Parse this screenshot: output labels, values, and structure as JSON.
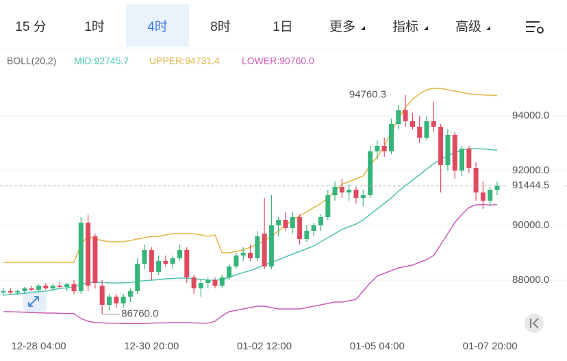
{
  "tabs": [
    "15 分",
    "1时",
    "4时",
    "8时",
    "1日",
    "更多",
    "指标",
    "高级"
  ],
  "active_tab": 2,
  "chart_data": {
    "type": "candlestick",
    "indicator": "BOLL(20,2)",
    "categories": [
      null,
      null,
      null,
      null,
      null,
      "12-28 04:00",
      null,
      null,
      null,
      null,
      null,
      null,
      null,
      null,
      null,
      null,
      null,
      null,
      null,
      null,
      null,
      "12-30 20:00",
      null,
      null,
      null,
      null,
      null,
      null,
      null,
      null,
      null,
      null,
      null,
      null,
      null,
      null,
      null,
      "01-02 12:00",
      null,
      null,
      null,
      null,
      null,
      null,
      null,
      null,
      null,
      null,
      null,
      null,
      null,
      null,
      null,
      "01-05 04:00",
      null,
      null,
      null,
      null,
      null,
      null,
      null,
      null,
      null,
      null,
      null,
      null,
      null,
      null,
      null,
      "01-07 20:00",
      null
    ],
    "open": [
      87550,
      87600,
      87550,
      87600,
      87700,
      87650,
      87800,
      87700,
      87800,
      87750,
      87850,
      87600,
      90100,
      89600,
      87800,
      87100,
      87400,
      87150,
      87400,
      87600,
      88600,
      89100,
      88300,
      88700,
      88600,
      88800,
      89100,
      88100,
      87700,
      87900,
      88000,
      87800,
      88100,
      88500,
      88900,
      89000,
      88800,
      89700,
      88500,
      90000,
      90200,
      89900,
      90300,
      89500,
      89800,
      90000,
      90300,
      91100,
      91400,
      91200,
      91300,
      91000,
      91100,
      92700,
      92900,
      92700,
      93700,
      94200,
      93800,
      93600,
      93200,
      93800,
      93600,
      92200,
      93300,
      92000,
      92800,
      92100,
      91200,
      90900,
      91300
    ],
    "high": [
      87700,
      87700,
      87650,
      87750,
      87800,
      87850,
      87900,
      87850,
      87950,
      87900,
      88000,
      90300,
      90400,
      89700,
      88000,
      87500,
      87500,
      87500,
      87700,
      88800,
      89300,
      89200,
      88900,
      88900,
      88900,
      89300,
      89200,
      88200,
      88000,
      88100,
      88100,
      88200,
      88600,
      89000,
      89200,
      89300,
      89800,
      91000,
      91100,
      90300,
      90500,
      90500,
      90400,
      90000,
      90100,
      90400,
      91300,
      91600,
      91700,
      91500,
      91400,
      91300,
      92900,
      93100,
      93200,
      93900,
      94400,
      94760.3,
      94100,
      94000,
      94000,
      94500,
      93700,
      93500,
      93400,
      92900,
      92900,
      92300,
      91600,
      91400,
      91600
    ],
    "low": [
      87450,
      87500,
      87450,
      87500,
      87600,
      87600,
      87650,
      87600,
      87700,
      87600,
      87500,
      87500,
      87600,
      87700,
      86760,
      86900,
      87000,
      87000,
      87200,
      87500,
      88400,
      88000,
      88200,
      88500,
      88400,
      88700,
      87900,
      87500,
      87400,
      87700,
      87700,
      87700,
      88000,
      88400,
      88700,
      88700,
      88700,
      88400,
      88400,
      89600,
      89800,
      89700,
      89300,
      89400,
      89600,
      89800,
      90200,
      90900,
      91000,
      90900,
      90800,
      90700,
      91000,
      92400,
      92500,
      92600,
      93500,
      93600,
      93500,
      93000,
      93100,
      93400,
      91200,
      92000,
      91700,
      91800,
      91900,
      90900,
      90600,
      90700,
      91100
    ],
    "close": [
      87600,
      87550,
      87600,
      87700,
      87650,
      87800,
      87700,
      87800,
      87750,
      87850,
      87600,
      90100,
      87800,
      87900,
      87100,
      87400,
      87150,
      87400,
      87600,
      88600,
      89100,
      88300,
      88700,
      88600,
      88800,
      89100,
      88100,
      87700,
      87900,
      88000,
      87800,
      88100,
      88500,
      88900,
      89000,
      88800,
      89600,
      88500,
      90000,
      90200,
      89900,
      90300,
      89500,
      89800,
      90000,
      90300,
      91100,
      91400,
      91200,
      91300,
      91000,
      91100,
      92700,
      92900,
      92700,
      93700,
      94200,
      93800,
      93600,
      93200,
      93800,
      93600,
      92200,
      93300,
      92000,
      92800,
      92100,
      91200,
      90900,
      91300,
      91444.5
    ],
    "up_color": "#35b57a",
    "down_color": "#e04a5f",
    "overlays": [
      {
        "label": "MID:92745.7",
        "color": "#4dc4b0",
        "values": [
          87450,
          87480,
          87500,
          87520,
          87550,
          87580,
          87600,
          87650,
          87700,
          87720,
          87750,
          87850,
          87900,
          87920,
          87920,
          87900,
          87900,
          87900,
          87920,
          87950,
          87980,
          88000,
          88020,
          88050,
          88060,
          88080,
          88070,
          88050,
          88030,
          88000,
          88000,
          88020,
          88100,
          88200,
          88280,
          88350,
          88450,
          88550,
          88650,
          88750,
          88850,
          88950,
          89050,
          89150,
          89250,
          89400,
          89550,
          89700,
          89850,
          89950,
          90050,
          90200,
          90400,
          90600,
          90800,
          91000,
          91250,
          91450,
          91650,
          91850,
          92050,
          92250,
          92400,
          92550,
          92650,
          92750,
          92800,
          92800,
          92790,
          92770,
          92745.7
        ]
      },
      {
        "label": "UPPER:94731.4",
        "color": "#e2b441",
        "values": [
          88650,
          88650,
          88650,
          88650,
          88650,
          88650,
          88650,
          88650,
          88650,
          88650,
          88650,
          89300,
          89600,
          89500,
          89450,
          89400,
          89400,
          89400,
          89450,
          89500,
          89550,
          89600,
          89600,
          89650,
          89700,
          89700,
          89700,
          89700,
          89650,
          89600,
          89650,
          89000,
          89000,
          89050,
          89100,
          89200,
          89300,
          89450,
          89600,
          89800,
          90000,
          90200,
          90350,
          90500,
          90650,
          90800,
          91000,
          91250,
          91500,
          91600,
          91700,
          91800,
          92200,
          92500,
          92900,
          93400,
          93900,
          94300,
          94600,
          94800,
          94950,
          95000,
          95000,
          94950,
          94900,
          94850,
          94800,
          94780,
          94760,
          94750,
          94731.4
        ]
      },
      {
        "label": "LOWER:90760.0",
        "color": "#c95bb6",
        "values": [
          86850,
          86850,
          86840,
          86830,
          86820,
          86810,
          86800,
          86800,
          86790,
          86780,
          86780,
          86600,
          86500,
          86450,
          86440,
          86430,
          86430,
          86420,
          86420,
          86420,
          86420,
          86430,
          86440,
          86440,
          86450,
          86450,
          86450,
          86440,
          86430,
          86430,
          86500,
          86700,
          86850,
          86900,
          86950,
          87000,
          87050,
          87050,
          87000,
          86950,
          86950,
          86950,
          86950,
          87000,
          87050,
          87100,
          87150,
          87200,
          87200,
          87250,
          87300,
          87600,
          87900,
          88150,
          88250,
          88350,
          88450,
          88500,
          88550,
          88650,
          88750,
          88900,
          89300,
          89700,
          90100,
          90400,
          90650,
          90750,
          90760,
          90740,
          90760
        ]
      }
    ],
    "annotations": {
      "high": "94760.3",
      "low": "86760.0",
      "last": "91444.5"
    },
    "ylim": [
      86100,
      95850
    ],
    "yticks": [
      {
        "value": 88000,
        "label": "88000.0"
      },
      {
        "value": 90000,
        "label": "90000.0"
      },
      {
        "value": 92000,
        "label": "92000.0"
      },
      {
        "value": 94000,
        "label": "94000.0"
      }
    ],
    "grid": true
  }
}
